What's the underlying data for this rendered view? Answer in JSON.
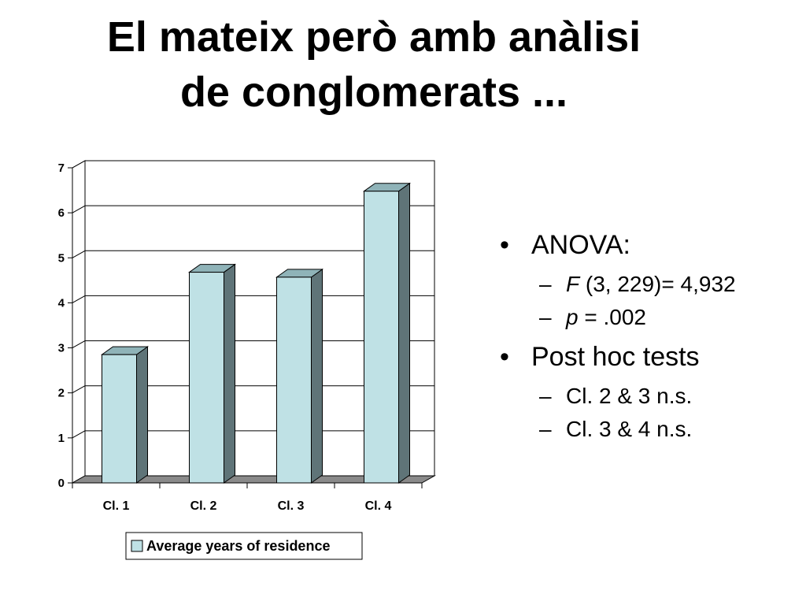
{
  "slide": {
    "title_line1": "El mateix però amb anàlisi",
    "title_line2": "de conglomerats ..."
  },
  "bullets": {
    "anova": {
      "label": "ANOVA:",
      "f_symbol": "F",
      "f_text": " (3, 229)= 4,932",
      "p_symbol": "p",
      "p_text": " = .002"
    },
    "posthoc": {
      "label": "Post hoc tests",
      "items": [
        "Cl. 2 & 3 n.s.",
        "Cl. 3 & 4 n.s."
      ]
    }
  },
  "chart_data": {
    "type": "bar",
    "categories": [
      "Cl. 1",
      "Cl. 2",
      "Cl. 3",
      "Cl. 4"
    ],
    "series": [
      {
        "name": "Average years of residence",
        "values": [
          2.85,
          4.68,
          4.57,
          6.48
        ]
      }
    ],
    "ylim": [
      0,
      7
    ],
    "yticks": [
      "0",
      "1",
      "2",
      "3",
      "4",
      "5",
      "6",
      "7"
    ],
    "grid": true,
    "legend_position": "bottom",
    "colors": {
      "bar_front": "#bfe1e5",
      "bar_side": "#5f7478",
      "bar_top": "#8fb3b8",
      "floor": "#8a8a8a",
      "gridline": "#000000"
    }
  }
}
